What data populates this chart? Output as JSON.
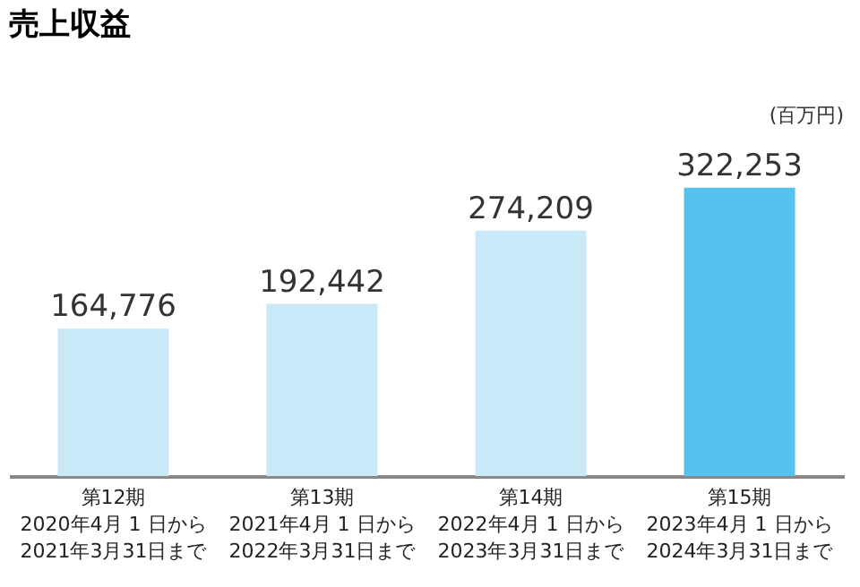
{
  "chart_data": {
    "type": "bar",
    "title": "売上収益",
    "ylabel": "(百万円)",
    "categories": [
      "第12期\n2020年4月 1 日から\n2021年3月31日まで",
      "第13期\n2021年4月 1 日から\n2022年3月31日まで",
      "第14期\n2022年4月 1 日から\n2023年3月31日まで",
      "第15期\n2023年4月 1 日から\n2024年3月31日まで"
    ],
    "values": [
      164776,
      192442,
      274209,
      322253
    ],
    "colors": [
      "#c9e8f8",
      "#c9e8f8",
      "#c9e8f8",
      "#56c3ef"
    ],
    "value_labels": [
      "164,776",
      "192,442",
      "274,209",
      "322,253"
    ],
    "tick_labels": "x",
    "grid": false
  }
}
